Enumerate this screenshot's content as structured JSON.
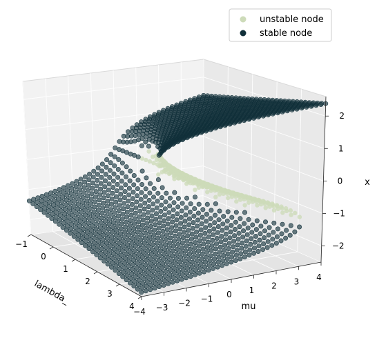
{
  "chart_data": {
    "type": "scatter",
    "projection": "3d",
    "title": "",
    "xlabel": "lambda_",
    "ylabel": "mu",
    "zlabel": "x",
    "xlim": [
      -1,
      4
    ],
    "ylim": [
      -4,
      4
    ],
    "zlim": [
      -2,
      2
    ],
    "xticks": [
      "−1",
      "0",
      "1",
      "2",
      "3",
      "4"
    ],
    "yticks": [
      "−4",
      "−3",
      "−2",
      "−1",
      "0",
      "1",
      "2",
      "3",
      "4"
    ],
    "zticks": [
      "−2",
      "−1",
      "0",
      "1",
      "2"
    ],
    "grid": true,
    "legend_position": "top-right",
    "series": [
      {
        "name": "unstable node",
        "color": "#cddbb9",
        "description": "middle branch of the cusp fold surface",
        "samples": [
          {
            "lambda": 0.5,
            "mu": 0.4,
            "x": 0.8
          },
          {
            "lambda": 1.5,
            "mu": 1.0,
            "x": 0.4
          },
          {
            "lambda": 2.5,
            "mu": 2.0,
            "x": 0.2
          },
          {
            "lambda": 3.5,
            "mu": 3.5,
            "x": 0.1
          }
        ]
      },
      {
        "name": "stable node",
        "color": "#11303a",
        "description": "upper and lower sheets of the cusp fold surface",
        "samples": [
          {
            "lambda": -1,
            "mu": -4,
            "x": -1.1
          },
          {
            "lambda": 4,
            "mu": -4,
            "x": -2.3
          },
          {
            "lambda": 4,
            "mu": 4,
            "x": 2.3
          },
          {
            "lambda": -1,
            "mu": 4,
            "x": 1.4
          }
        ]
      }
    ]
  }
}
